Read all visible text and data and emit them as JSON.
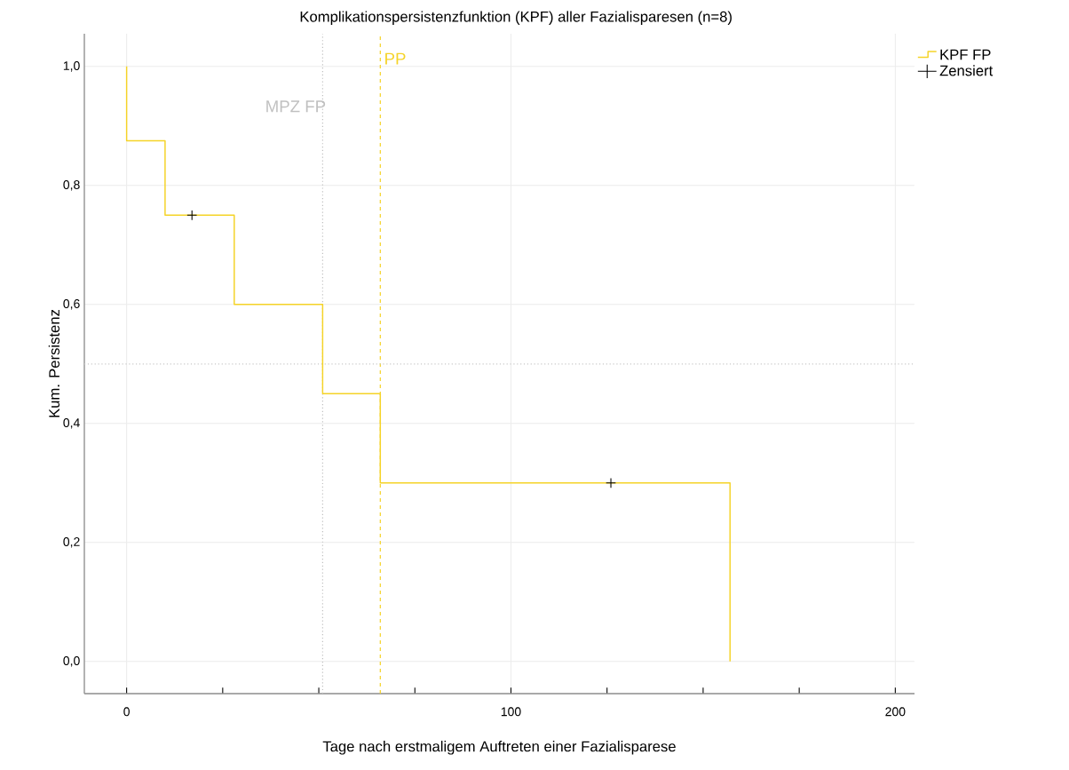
{
  "chart_data": {
    "type": "step",
    "title": "Komplikationspersistenzfunktion (KPF) aller Fazialisparesen (n=8)",
    "xlabel": "Tage nach erstmaligem Auftreten einer Fazialisparese",
    "ylabel": "Kum. Persistenz",
    "series": [
      {
        "name": "KPF FP",
        "type": "step",
        "color": "#f5d327",
        "x": [
          0,
          0,
          10,
          28,
          51,
          66,
          157
        ],
        "values": [
          1.0,
          0.875,
          0.75,
          0.6,
          0.45,
          0.3,
          0.0
        ]
      },
      {
        "name": "Zensiert",
        "type": "scatter",
        "marker": "cross",
        "color": "#000000",
        "x": [
          17,
          126
        ],
        "values": [
          0.75,
          0.3
        ]
      }
    ],
    "xlim": [
      -11,
      205
    ],
    "ylim": [
      -0.054,
      1.055
    ],
    "xticks": [
      0,
      {
        "value": 25,
        "label": null
      },
      {
        "value": 50,
        "label": null
      },
      {
        "value": 75,
        "label": null
      },
      100,
      {
        "value": 125,
        "label": null
      },
      {
        "value": 150,
        "label": null
      },
      {
        "value": 175,
        "label": null
      },
      200
    ],
    "yticks": [
      {
        "value": 0,
        "label": "0,0"
      },
      {
        "value": 0.2,
        "label": "0,2"
      },
      {
        "value": 0.4,
        "label": "0,4"
      },
      {
        "value": 0.6,
        "label": "0,6"
      },
      {
        "value": 0.8,
        "label": "0,8"
      },
      {
        "value": 1.0,
        "label": "1,0"
      }
    ],
    "ref_lines": [
      {
        "axis": "x",
        "value": 51,
        "label": "MPZ FP",
        "color": "#c0c0c0",
        "line_style": "dotted"
      },
      {
        "axis": "x",
        "value": 66,
        "label": "PP",
        "color": "#f5d327",
        "line_style": "dashed"
      },
      {
        "axis": "y",
        "value": 0.5,
        "color": "#c8c8c8",
        "line_style": "dotted"
      }
    ],
    "grid": true,
    "legend": "top right"
  }
}
